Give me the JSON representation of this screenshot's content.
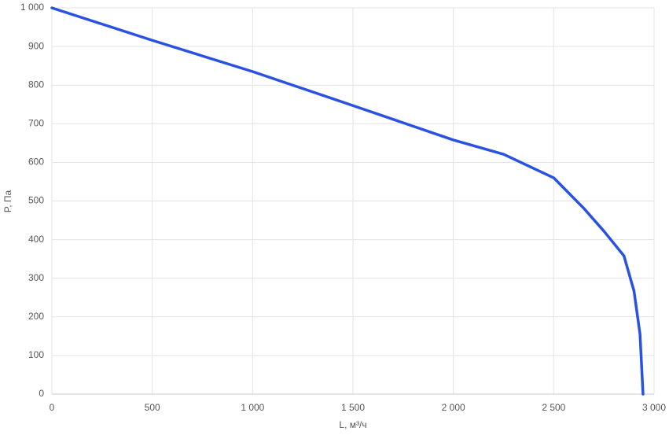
{
  "chart_data": {
    "type": "line",
    "x_label": "L, м³/ч",
    "y_label": "P, Па",
    "series": [
      {
        "color": "#2952e3",
        "x": [
          0,
          500,
          1000,
          1500,
          2000,
          2250,
          2500,
          2650,
          2750,
          2850,
          2900,
          2930,
          2945
        ],
        "values": [
          1000,
          916,
          835,
          747,
          658,
          621,
          560,
          481,
          422,
          358,
          267,
          155,
          0
        ]
      }
    ],
    "xlim": [
      0,
      3000
    ],
    "xticks": [
      0,
      500,
      {
        "value": 1000,
        "label": "1 000"
      },
      {
        "value": 1500,
        "label": "1 500"
      },
      {
        "value": 2000,
        "label": "2 000"
      },
      {
        "value": 2500,
        "label": "2 500"
      },
      {
        "value": 3000,
        "label": "3 000"
      }
    ],
    "ylim": [
      0,
      1000
    ],
    "yticks": [
      0,
      100,
      200,
      300,
      400,
      500,
      600,
      700,
      800,
      900,
      {
        "value": 1000,
        "label": "1 000"
      }
    ],
    "grid": true
  }
}
